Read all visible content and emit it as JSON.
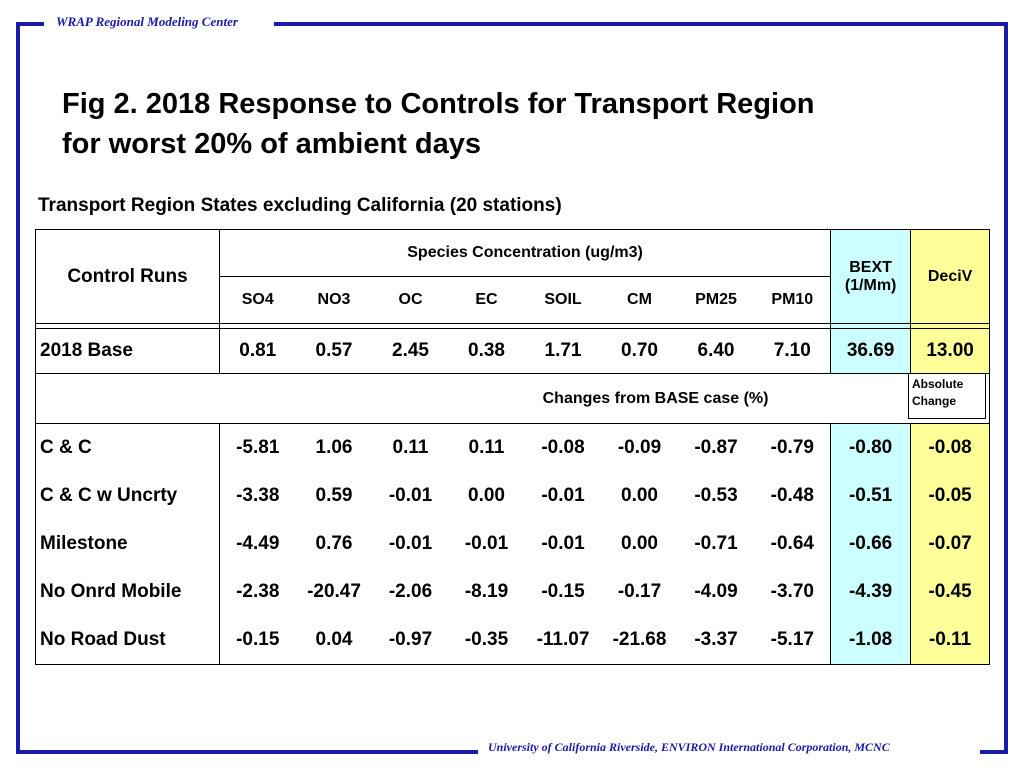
{
  "header": {
    "org": "WRAP Regional Modeling Center"
  },
  "footer": {
    "credits": "University of California Riverside, ENVIRON International Corporation, MCNC"
  },
  "title": {
    "line1": "Fig 2.  2018 Response to Controls for Transport Region",
    "line2": "for worst 20% of ambient days"
  },
  "subtitle": "Transport Region States excluding California (20 stations)",
  "table": {
    "control_runs_label": "Control Runs",
    "species_label": "Species Concentration (ug/m3)",
    "bext_label_line1": "BEXT",
    "bext_label_line2": "(1/Mm)",
    "deciv_label": "DeciV",
    "species": [
      "SO4",
      "NO3",
      "OC",
      "EC",
      "SOIL",
      "CM",
      "PM25",
      "PM10"
    ],
    "base": {
      "label": "2018 Base",
      "values": [
        "0.81",
        "0.57",
        "2.45",
        "0.38",
        "1.71",
        "0.70",
        "6.40",
        "7.10"
      ],
      "bext": "36.69",
      "deciv": "13.00"
    },
    "changes_label": "Changes from BASE case (%)",
    "absolute_change_line1": "Absolute",
    "absolute_change_line2": "Change",
    "rows": [
      {
        "label": "C & C",
        "values": [
          "-5.81",
          "1.06",
          "0.11",
          "0.11",
          "-0.08",
          "-0.09",
          "-0.87",
          "-0.79"
        ],
        "bext": "-0.80",
        "deciv": "-0.08"
      },
      {
        "label": "C & C w Uncrty",
        "values": [
          "-3.38",
          "0.59",
          "-0.01",
          "0.00",
          "-0.01",
          "0.00",
          "-0.53",
          "-0.48"
        ],
        "bext": "-0.51",
        "deciv": "-0.05"
      },
      {
        "label": "Milestone",
        "values": [
          "-4.49",
          "0.76",
          "-0.01",
          "-0.01",
          "-0.01",
          "0.00",
          "-0.71",
          "-0.64"
        ],
        "bext": "-0.66",
        "deciv": "-0.07"
      },
      {
        "label": "No Onrd Mobile",
        "values": [
          "-2.38",
          "-20.47",
          "-2.06",
          "-8.19",
          "-0.15",
          "-0.17",
          "-4.09",
          "-3.70"
        ],
        "bext": "-4.39",
        "deciv": "-0.45"
      },
      {
        "label": "No Road Dust",
        "values": [
          "-0.15",
          "0.04",
          "-0.97",
          "-0.35",
          "-11.07",
          "-21.68",
          "-3.37",
          "-5.17"
        ],
        "bext": "-1.08",
        "deciv": "-0.11"
      }
    ]
  },
  "colors": {
    "frame": "#1a1aa8",
    "bext_fill": "#ccffff",
    "deciv_fill": "#ffff99"
  }
}
